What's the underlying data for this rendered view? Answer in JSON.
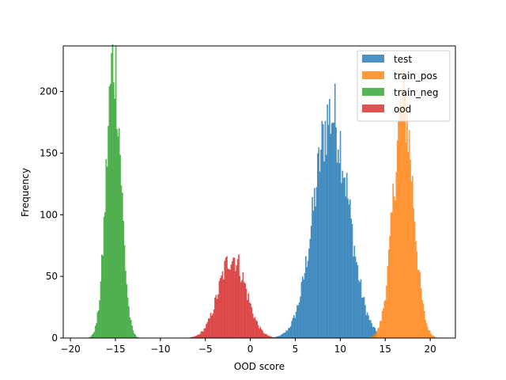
{
  "chart_data": {
    "type": "histogram",
    "xlabel": "OOD score",
    "ylabel": "Frequency",
    "xlim": [
      -20.8,
      22.8
    ],
    "ylim": [
      0,
      237
    ],
    "xticks": [
      -20,
      -15,
      -10,
      -5,
      0,
      5,
      10,
      15,
      20
    ],
    "xtick_labels": [
      "−20",
      "−15",
      "−10",
      "−5",
      "0",
      "5",
      "10",
      "15",
      "20"
    ],
    "yticks": [
      0,
      50,
      100,
      150,
      200
    ],
    "ytick_labels": [
      "0",
      "50",
      "100",
      "150",
      "200"
    ],
    "bin_width": 0.12,
    "bar_alpha": 0.8,
    "legend": {
      "position": "upper right",
      "entries": [
        "test",
        "train_pos",
        "train_neg",
        "ood"
      ]
    },
    "series": [
      {
        "name": "test",
        "color": "#1f77b4",
        "approx_center": 9.0,
        "approx_spread": 1.9,
        "approx_peak": 182,
        "range": [
          2.5,
          14.0
        ]
      },
      {
        "name": "train_pos",
        "color": "#ff7f0e",
        "approx_center": 17.0,
        "approx_spread": 1.1,
        "approx_peak": 190,
        "range": [
          12.8,
          20.8
        ]
      },
      {
        "name": "train_neg",
        "color": "#2ca02c",
        "approx_center": -15.2,
        "approx_spread": 0.8,
        "approx_peak": 226,
        "range": [
          -18.5,
          -11.2
        ]
      },
      {
        "name": "ood",
        "color": "#d62728",
        "approx_center": -2.0,
        "approx_spread": 1.5,
        "approx_peak": 66,
        "range": [
          -7.0,
          3.0
        ]
      }
    ]
  }
}
